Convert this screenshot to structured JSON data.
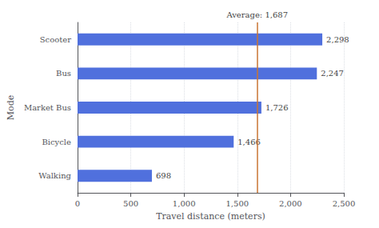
{
  "chart_data": {
    "type": "bar",
    "orientation": "horizontal",
    "categories": [
      "Walking",
      "Bicycle",
      "Market Bus",
      "Bus",
      "Scooter"
    ],
    "values": [
      698,
      1466,
      1726,
      2247,
      2298
    ],
    "value_labels": [
      "698",
      "1,466",
      "1,726",
      "2,247",
      "2,298"
    ],
    "data_labels": true,
    "xlabel": "Travel distance (meters)",
    "ylabel": "Mode",
    "xlim": [
      0,
      2500
    ],
    "xticks": [
      0,
      500,
      1000,
      1500,
      2000,
      2500
    ],
    "grid": true,
    "annotations": [
      {
        "type": "vline",
        "x": 1687,
        "text": "Average: 1,687",
        "color": "#c87533"
      }
    ]
  }
}
